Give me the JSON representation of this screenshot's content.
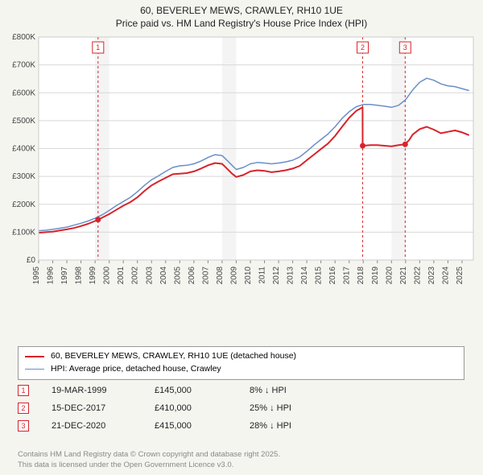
{
  "title_line1": "60, BEVERLEY MEWS, CRAWLEY, RH10 1UE",
  "title_line2": "Price paid vs. HM Land Registry's House Price Index (HPI)",
  "chart": {
    "type": "line",
    "background_color": "#ffffff",
    "outer_background": "#f5f5f0",
    "plot_border_color": "#cccccc",
    "grid_color": "#d8d8d8",
    "shaded_band_color": "#f4f4f4",
    "shaded_bands_x": [
      [
        1999,
        2000
      ],
      [
        2008,
        2009
      ],
      [
        2020,
        2021
      ]
    ],
    "x": {
      "min": 1995,
      "max": 2025.8,
      "tick_step": 1,
      "tick_labels": [
        "1995",
        "1996",
        "1997",
        "1998",
        "1999",
        "2000",
        "2001",
        "2002",
        "2003",
        "2004",
        "2005",
        "2006",
        "2007",
        "2008",
        "2009",
        "2010",
        "2011",
        "2012",
        "2013",
        "2014",
        "2015",
        "2016",
        "2017",
        "2018",
        "2019",
        "2020",
        "2021",
        "2022",
        "2023",
        "2024",
        "2025"
      ],
      "tick_font_size": 10,
      "tick_color": "#444444",
      "tick_rotation": -90
    },
    "y": {
      "min": 0,
      "max": 800000,
      "tick_step": 100000,
      "tick_labels": [
        "£0",
        "£100K",
        "£200K",
        "£300K",
        "£400K",
        "£500K",
        "£600K",
        "£700K",
        "£800K"
      ],
      "tick_font_size": 10,
      "tick_color": "#444444"
    },
    "series": [
      {
        "name": "price_paid",
        "label": "60, BEVERLEY MEWS, CRAWLEY, RH10 1UE (detached house)",
        "color": "#d8232a",
        "line_width": 2,
        "data": [
          [
            1995.0,
            98000
          ],
          [
            1995.5,
            100000
          ],
          [
            1996.0,
            102000
          ],
          [
            1996.5,
            106000
          ],
          [
            1997.0,
            110000
          ],
          [
            1997.5,
            115000
          ],
          [
            1998.0,
            122000
          ],
          [
            1998.5,
            130000
          ],
          [
            1999.0,
            140000
          ],
          [
            1999.21,
            145000
          ],
          [
            1999.5,
            152000
          ],
          [
            2000.0,
            165000
          ],
          [
            2000.5,
            180000
          ],
          [
            2001.0,
            195000
          ],
          [
            2001.5,
            208000
          ],
          [
            2002.0,
            225000
          ],
          [
            2002.5,
            248000
          ],
          [
            2003.0,
            268000
          ],
          [
            2003.5,
            282000
          ],
          [
            2004.0,
            295000
          ],
          [
            2004.5,
            308000
          ],
          [
            2005.0,
            310000
          ],
          [
            2005.5,
            312000
          ],
          [
            2006.0,
            318000
          ],
          [
            2006.5,
            328000
          ],
          [
            2007.0,
            340000
          ],
          [
            2007.5,
            348000
          ],
          [
            2008.0,
            345000
          ],
          [
            2008.3,
            330000
          ],
          [
            2008.7,
            310000
          ],
          [
            2009.0,
            298000
          ],
          [
            2009.5,
            305000
          ],
          [
            2010.0,
            318000
          ],
          [
            2010.5,
            322000
          ],
          [
            2011.0,
            320000
          ],
          [
            2011.5,
            315000
          ],
          [
            2012.0,
            318000
          ],
          [
            2012.5,
            322000
          ],
          [
            2013.0,
            328000
          ],
          [
            2013.5,
            338000
          ],
          [
            2014.0,
            358000
          ],
          [
            2014.5,
            378000
          ],
          [
            2015.0,
            398000
          ],
          [
            2015.5,
            418000
          ],
          [
            2016.0,
            445000
          ],
          [
            2016.5,
            478000
          ],
          [
            2017.0,
            510000
          ],
          [
            2017.5,
            535000
          ],
          [
            2017.95,
            548000
          ],
          [
            2017.96,
            410000
          ],
          [
            2018.0,
            410000
          ],
          [
            2018.5,
            412000
          ],
          [
            2019.0,
            412000
          ],
          [
            2019.5,
            410000
          ],
          [
            2020.0,
            408000
          ],
          [
            2020.5,
            412000
          ],
          [
            2020.96,
            415000
          ],
          [
            2021.25,
            430000
          ],
          [
            2021.5,
            450000
          ],
          [
            2022.0,
            470000
          ],
          [
            2022.5,
            478000
          ],
          [
            2023.0,
            468000
          ],
          [
            2023.5,
            455000
          ],
          [
            2024.0,
            460000
          ],
          [
            2024.5,
            465000
          ],
          [
            2025.0,
            458000
          ],
          [
            2025.5,
            448000
          ]
        ]
      },
      {
        "name": "hpi",
        "label": "HPI: Average price, detached house, Crawley",
        "color": "#6a8fc7",
        "line_width": 1.5,
        "data": [
          [
            1995.0,
            105000
          ],
          [
            1995.5,
            107000
          ],
          [
            1996.0,
            110000
          ],
          [
            1996.5,
            114000
          ],
          [
            1997.0,
            118000
          ],
          [
            1997.5,
            125000
          ],
          [
            1998.0,
            132000
          ],
          [
            1998.5,
            140000
          ],
          [
            1999.0,
            150000
          ],
          [
            1999.5,
            162000
          ],
          [
            2000.0,
            178000
          ],
          [
            2000.5,
            195000
          ],
          [
            2001.0,
            210000
          ],
          [
            2001.5,
            225000
          ],
          [
            2002.0,
            245000
          ],
          [
            2002.5,
            268000
          ],
          [
            2003.0,
            288000
          ],
          [
            2003.5,
            302000
          ],
          [
            2004.0,
            318000
          ],
          [
            2004.5,
            332000
          ],
          [
            2005.0,
            338000
          ],
          [
            2005.5,
            340000
          ],
          [
            2006.0,
            345000
          ],
          [
            2006.5,
            355000
          ],
          [
            2007.0,
            368000
          ],
          [
            2007.5,
            378000
          ],
          [
            2008.0,
            375000
          ],
          [
            2008.3,
            360000
          ],
          [
            2008.7,
            340000
          ],
          [
            2009.0,
            325000
          ],
          [
            2009.5,
            332000
          ],
          [
            2010.0,
            345000
          ],
          [
            2010.5,
            350000
          ],
          [
            2011.0,
            348000
          ],
          [
            2011.5,
            345000
          ],
          [
            2012.0,
            348000
          ],
          [
            2012.5,
            352000
          ],
          [
            2013.0,
            358000
          ],
          [
            2013.5,
            370000
          ],
          [
            2014.0,
            390000
          ],
          [
            2014.5,
            412000
          ],
          [
            2015.0,
            432000
          ],
          [
            2015.5,
            452000
          ],
          [
            2016.0,
            478000
          ],
          [
            2016.5,
            508000
          ],
          [
            2017.0,
            532000
          ],
          [
            2017.5,
            550000
          ],
          [
            2018.0,
            558000
          ],
          [
            2018.5,
            558000
          ],
          [
            2019.0,
            555000
          ],
          [
            2019.5,
            552000
          ],
          [
            2020.0,
            548000
          ],
          [
            2020.5,
            555000
          ],
          [
            2021.0,
            575000
          ],
          [
            2021.5,
            610000
          ],
          [
            2022.0,
            638000
          ],
          [
            2022.5,
            652000
          ],
          [
            2023.0,
            645000
          ],
          [
            2023.5,
            632000
          ],
          [
            2024.0,
            625000
          ],
          [
            2024.5,
            622000
          ],
          [
            2025.0,
            615000
          ],
          [
            2025.5,
            608000
          ]
        ]
      }
    ],
    "sale_markers": [
      {
        "n": "1",
        "x": 1999.21,
        "y": 145000,
        "color": "#d8232a"
      },
      {
        "n": "2",
        "x": 2017.96,
        "y": 410000,
        "color": "#d8232a"
      },
      {
        "n": "3",
        "x": 2020.97,
        "y": 415000,
        "color": "#d8232a"
      }
    ],
    "sale_dot_radius": 3.5
  },
  "legend": {
    "items": [
      {
        "color": "#d8232a",
        "width": 2,
        "label": "60, BEVERLEY MEWS, CRAWLEY, RH10 1UE (detached house)"
      },
      {
        "color": "#6a8fc7",
        "width": 1.5,
        "label": "HPI: Average price, detached house, Crawley"
      }
    ]
  },
  "sales": [
    {
      "n": "1",
      "color": "#d8232a",
      "date": "19-MAR-1999",
      "price": "£145,000",
      "delta": "8% ↓ HPI"
    },
    {
      "n": "2",
      "color": "#d8232a",
      "date": "15-DEC-2017",
      "price": "£410,000",
      "delta": "25% ↓ HPI"
    },
    {
      "n": "3",
      "color": "#d8232a",
      "date": "21-DEC-2020",
      "price": "£415,000",
      "delta": "28% ↓ HPI"
    }
  ],
  "attribution_line1": "Contains HM Land Registry data © Crown copyright and database right 2025.",
  "attribution_line2": "This data is licensed under the Open Government Licence v3.0."
}
